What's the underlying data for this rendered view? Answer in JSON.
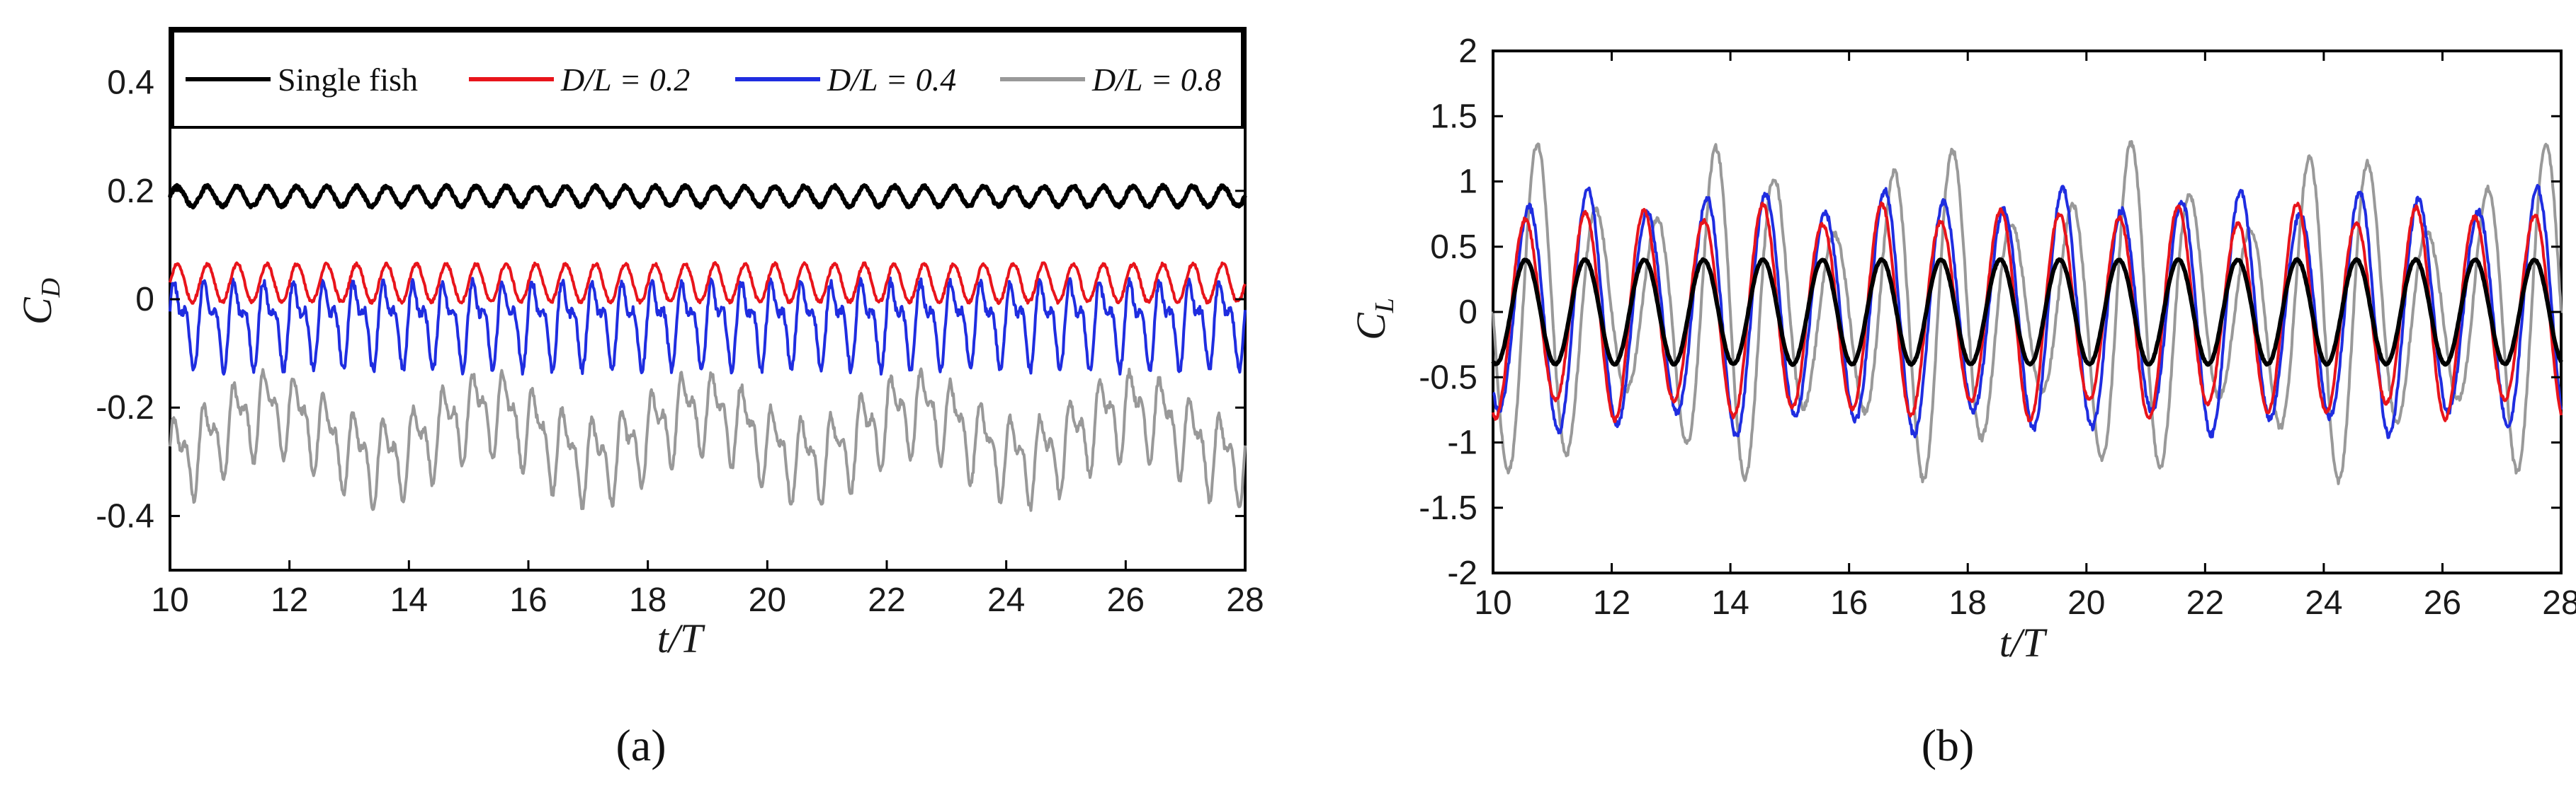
{
  "panel_labels": [
    "(a)",
    "(b)"
  ],
  "chart_data": [
    {
      "type": "line",
      "panel": "(a)",
      "xlabel": "t/T",
      "ylabel": "C_D",
      "ylabel_main": "C",
      "ylabel_sub": "D",
      "xlim": [
        10,
        28
      ],
      "ylim": [
        -0.5,
        0.5
      ],
      "xticks": [
        "10",
        "12",
        "14",
        "16",
        "18",
        "20",
        "22",
        "24",
        "26",
        "28"
      ],
      "yticks": [
        "-0.4",
        "-0.2",
        "0",
        "0.2",
        "0.4"
      ],
      "legend_placement": "top (framed box inside plot)",
      "series": [
        {
          "name": "Single fish",
          "color": "#000000",
          "mean": 0.19,
          "amplitude": 0.018,
          "period": 0.5,
          "noise": 0.006
        },
        {
          "name": "D/L = 0.2",
          "color": "#e8141b",
          "mean": 0.03,
          "amplitude": 0.035,
          "period": 0.5,
          "noise": 0.006
        },
        {
          "name": "D/L = 0.4",
          "color": "#1f2de0",
          "mean": -0.04,
          "amplitude": 0.06,
          "period": 0.5,
          "noise": 0.015
        },
        {
          "name": "D/L = 0.8",
          "color": "#999999",
          "mean": -0.25,
          "amplitude": 0.06,
          "period": 0.5,
          "noise": 0.015
        }
      ]
    },
    {
      "type": "line",
      "panel": "(b)",
      "xlabel": "t/T",
      "ylabel": "C_L",
      "ylabel_main": "C",
      "ylabel_sub": "L",
      "xlim": [
        10,
        28
      ],
      "ylim": [
        -2,
        2
      ],
      "xticks": [
        "10",
        "12",
        "14",
        "16",
        "18",
        "20",
        "22",
        "24",
        "26",
        "28"
      ],
      "yticks": [
        "-2",
        "-1.5",
        "-1",
        "-0.5",
        "0",
        "0.5",
        "1",
        "1.5",
        "2"
      ],
      "series": [
        {
          "name": "Single fish",
          "color": "#000000",
          "mean": 0.0,
          "amplitude": 0.4,
          "period": 1.0,
          "noise": 0.01
        },
        {
          "name": "D/L = 0.2",
          "color": "#e8141b",
          "mean": 0.0,
          "amplitude": 0.75,
          "period": 1.0,
          "noise": 0.03
        },
        {
          "name": "D/L = 0.4",
          "color": "#1f2de0",
          "mean": 0.0,
          "amplitude": 0.85,
          "period": 1.0,
          "noise": 0.05
        },
        {
          "name": "D/L = 0.8",
          "color": "#999999",
          "mean": 0.0,
          "amplitude": 0.9,
          "period": 1.0,
          "noise": 0.05
        }
      ]
    }
  ]
}
